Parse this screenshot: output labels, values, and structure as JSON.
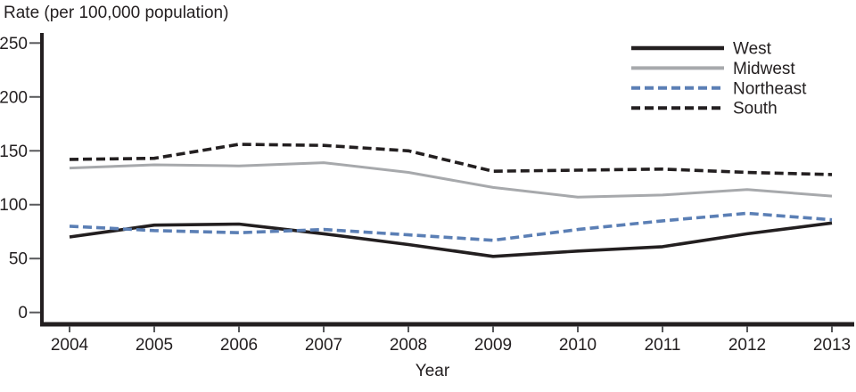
{
  "chart_data": {
    "type": "line",
    "title": "Rate (per 100,000 population)",
    "xlabel": "Year",
    "ylabel": "Rate (per 100,000 population)",
    "categories": [
      "2004",
      "2005",
      "2006",
      "2007",
      "2008",
      "2009",
      "2010",
      "2011",
      "2012",
      "2013"
    ],
    "yticks": [
      "0",
      "50",
      "100",
      "150",
      "200",
      "250"
    ],
    "ylim": [
      0,
      260
    ],
    "grid": false,
    "legend_position": "top-right",
    "series": [
      {
        "name": "West",
        "color": "#231f20",
        "line_style": "solid",
        "values": [
          70,
          81,
          82,
          73,
          63,
          52,
          57,
          61,
          73,
          83
        ]
      },
      {
        "name": "Midwest",
        "color": "#a7a9ac",
        "line_style": "solid",
        "values": [
          134,
          137,
          136,
          139,
          130,
          116,
          107,
          109,
          114,
          108
        ]
      },
      {
        "name": "Northeast",
        "color": "#5b7fb5",
        "line_style": "dashed",
        "values": [
          80,
          76,
          74,
          77,
          72,
          67,
          77,
          85,
          92,
          86
        ]
      },
      {
        "name": "South",
        "color": "#231f20",
        "line_style": "dashed",
        "values": [
          142,
          143,
          156,
          155,
          150,
          131,
          132,
          133,
          130,
          128
        ]
      }
    ],
    "colors": {
      "axis": "#231f20",
      "tick": "#58595b",
      "text": "#231f20"
    }
  }
}
